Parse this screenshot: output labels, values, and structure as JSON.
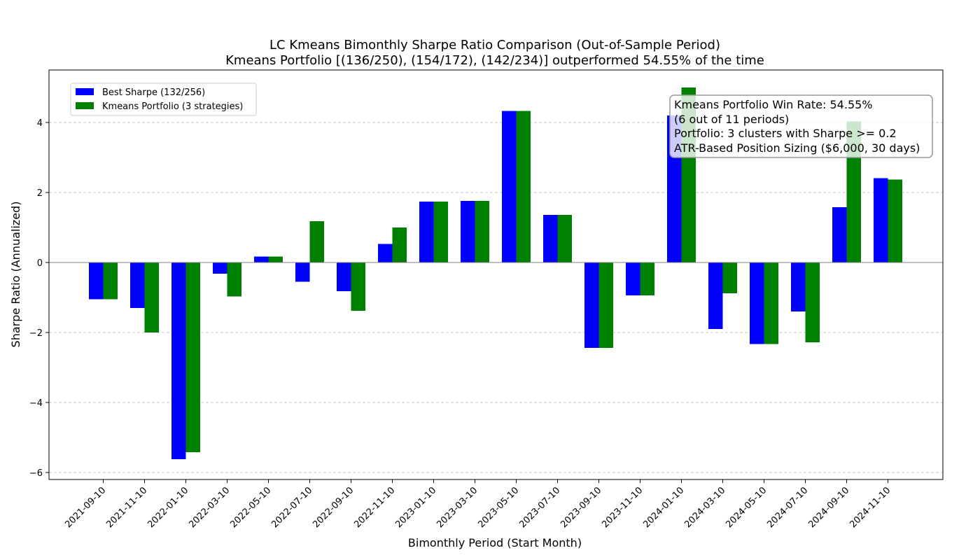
{
  "chart_data": {
    "type": "bar",
    "title": "LC Kmeans Bimonthly Sharpe Ratio Comparison (Out-of-Sample Period)",
    "subtitle": "Kmeans Portfolio [(136/250), (154/172), (142/234)] outperformed 54.55% of the time",
    "xlabel": "Bimonthly Period (Start Month)",
    "ylabel": "Sharpe Ratio (Annualized)",
    "ylim": [
      -6.2,
      5.5
    ],
    "yticks": [
      -6,
      -4,
      -2,
      0,
      2,
      4
    ],
    "ytick_labels": [
      "−6",
      "−4",
      "−2",
      "0",
      "2",
      "4"
    ],
    "grid": "y dashed",
    "legend_position": "top-left",
    "categories": [
      "2021-09-10",
      "2021-11-10",
      "2022-01-10",
      "2022-03-10",
      "2022-05-10",
      "2022-07-10",
      "2022-09-10",
      "2022-11-10",
      "2023-01-10",
      "2023-03-10",
      "2023-05-10",
      "2023-07-10",
      "2023-09-10",
      "2023-11-10",
      "2024-01-10",
      "2024-03-10",
      "2024-05-10",
      "2024-07-10",
      "2024-09-10",
      "2024-11-10"
    ],
    "series": [
      {
        "name": "Best Sharpe (132/256)",
        "color": "#0000ff",
        "values": [
          -1.05,
          -1.3,
          -5.62,
          -0.32,
          0.17,
          -0.55,
          -0.82,
          0.53,
          1.74,
          1.76,
          4.33,
          1.36,
          -2.44,
          -0.94,
          4.2,
          -1.9,
          -2.33,
          -1.4,
          1.58,
          2.41
        ]
      },
      {
        "name": "Kmeans Portfolio (3 strategies)",
        "color": "#008000",
        "values": [
          -1.05,
          -2.0,
          -5.42,
          -0.97,
          0.17,
          1.18,
          -1.38,
          1.0,
          1.74,
          1.76,
          4.33,
          1.36,
          -2.44,
          -0.94,
          5.0,
          -0.88,
          -2.33,
          -2.28,
          4.03,
          2.37
        ]
      }
    ],
    "annotation": {
      "lines": [
        "Kmeans Portfolio Win Rate: 54.55%",
        "(6 out of 11 periods)",
        "Portfolio: 3 clusters with Sharpe >= 0.2",
        "ATR-Based Position Sizing ($6,000, 30 days)"
      ],
      "position": "top-right"
    }
  }
}
